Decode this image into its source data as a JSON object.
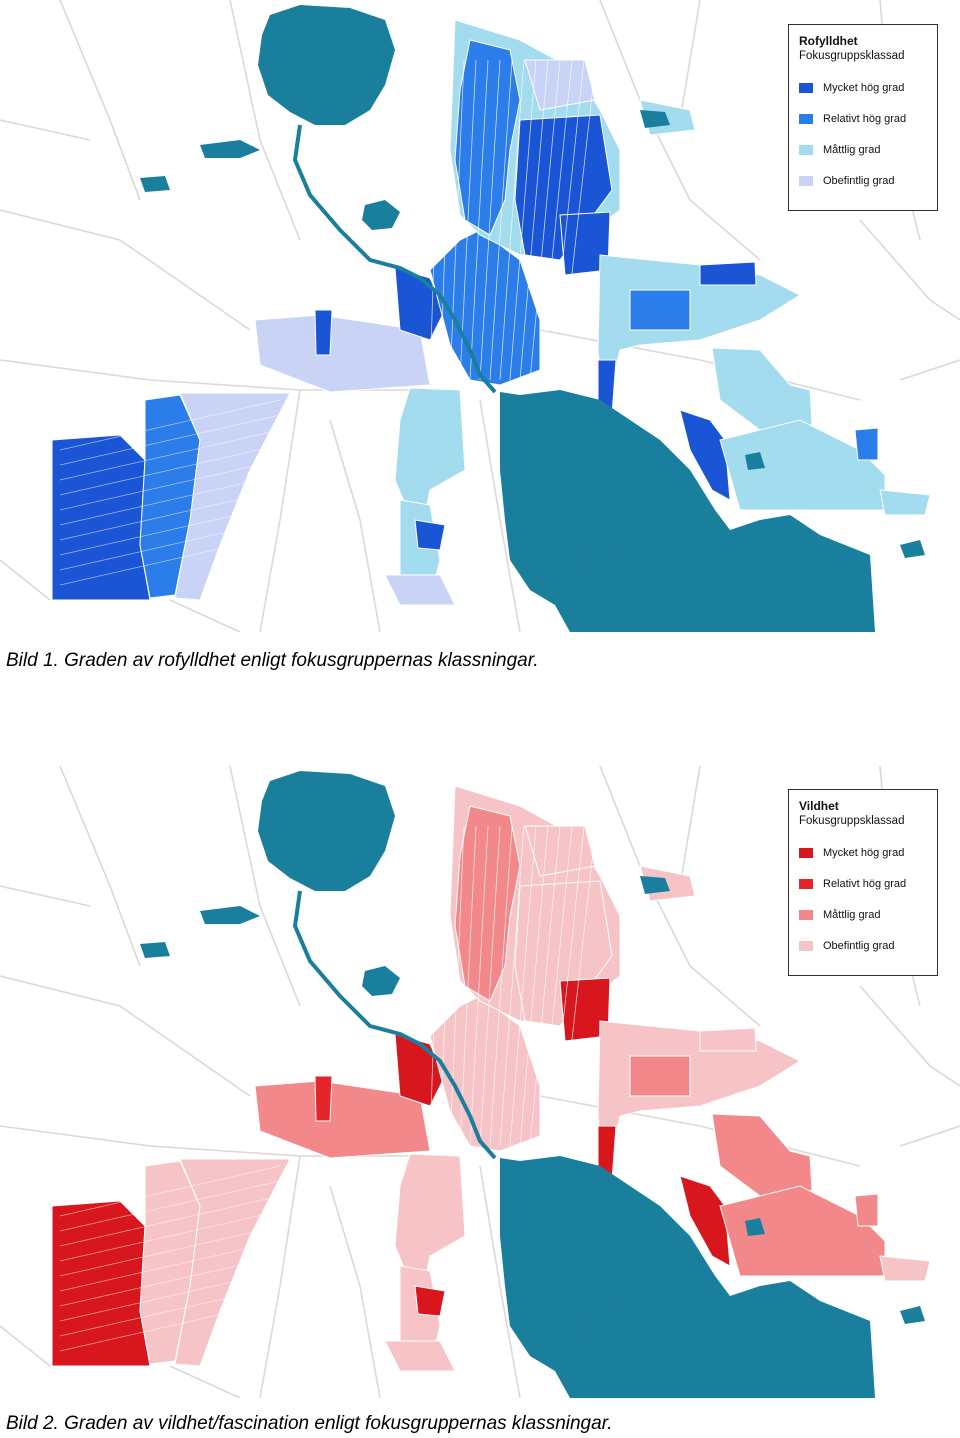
{
  "colors": {
    "water": "#1a7f9c",
    "road": "#d9d9d9",
    "background": "#ffffff"
  },
  "maps": [
    {
      "legend": {
        "title": "Rofylldhet",
        "subtitle": "Fokusgruppsklassad",
        "items": [
          {
            "label": "Mycket hög grad",
            "color": "#1a55d6"
          },
          {
            "label": "Relativt hög grad",
            "color": "#2b7de9"
          },
          {
            "label": "Måttlig grad",
            "color": "#a3dbef"
          },
          {
            "label": "Obefintlig grad",
            "color": "#c9d3f6"
          }
        ]
      },
      "caption": "Bild 1. Graden av rofylldhet enligt fokusgruppernas klassningar."
    },
    {
      "legend": {
        "title": "Vildhet",
        "subtitle": "Fokusgruppsklassad",
        "items": [
          {
            "label": "Mycket hög grad",
            "color": "#d7161d"
          },
          {
            "label": "Relativt hög grad",
            "color": "#e4262b"
          },
          {
            "label": "Måttlig grad",
            "color": "#f2888a"
          },
          {
            "label": "Obefintlig grad",
            "color": "#f6c4c6"
          }
        ]
      },
      "caption": "Bild 2. Graden av vildhet/fascination enligt fokusgruppernas klassningar."
    }
  ]
}
